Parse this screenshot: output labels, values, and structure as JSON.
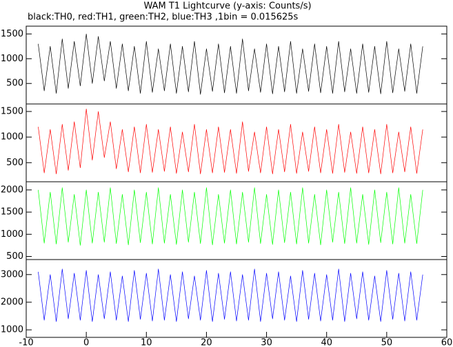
{
  "chart_data": [
    {
      "type": "line",
      "title": "WAM T1 Lightcurve (y-axis: Counts/s)",
      "subtitle": "black:TH0, red:TH1, green:TH2, blue:TH3 ,1bin = 0.015625s",
      "x": [
        -8,
        -7,
        -6,
        -5,
        -4,
        -3,
        -2,
        -1,
        0,
        1,
        2,
        3,
        4,
        5,
        6,
        7,
        8,
        9,
        10,
        11,
        12,
        13,
        14,
        15,
        16,
        17,
        18,
        19,
        20,
        21,
        22,
        23,
        24,
        25,
        26,
        27,
        28,
        29,
        30,
        31,
        32,
        33,
        34,
        35,
        36,
        37,
        38,
        39,
        40,
        41,
        42,
        43,
        44,
        45,
        46,
        47,
        48,
        49,
        50,
        51,
        52,
        53,
        54,
        55,
        56
      ],
      "series": [
        {
          "name": "TH0",
          "color": "#000000",
          "values": [
            1300,
            350,
            1250,
            300,
            1400,
            400,
            1350,
            450,
            1500,
            500,
            1450,
            550,
            1350,
            400,
            1300,
            350,
            1250,
            300,
            1350,
            320,
            1200,
            350,
            1300,
            300,
            1250,
            330,
            1350,
            280,
            1200,
            340,
            1300,
            310,
            1250,
            300,
            1400,
            350,
            1200,
            320,
            1300,
            290,
            1250,
            330,
            1350,
            300,
            1200,
            340,
            1300,
            310,
            1250,
            300,
            1350,
            330,
            1200,
            300,
            1300,
            320,
            1250,
            290,
            1350,
            310,
            1200,
            340,
            1300,
            300,
            1250
          ]
        }
      ],
      "xlim": [
        -10,
        60
      ],
      "ylim": [
        86,
        1657
      ],
      "yticks": [
        500,
        1000,
        1500
      ]
    },
    {
      "type": "line",
      "x": [
        -8,
        -7,
        -6,
        -5,
        -4,
        -3,
        -2,
        -1,
        0,
        1,
        2,
        3,
        4,
        5,
        6,
        7,
        8,
        9,
        10,
        11,
        12,
        13,
        14,
        15,
        16,
        17,
        18,
        19,
        20,
        21,
        22,
        23,
        24,
        25,
        26,
        27,
        28,
        29,
        30,
        31,
        32,
        33,
        34,
        35,
        36,
        37,
        38,
        39,
        40,
        41,
        42,
        43,
        44,
        45,
        46,
        47,
        48,
        49,
        50,
        51,
        52,
        53,
        54,
        55,
        56
      ],
      "series": [
        {
          "name": "TH1",
          "color": "#ff0000",
          "values": [
            1200,
            300,
            1150,
            280,
            1250,
            350,
            1300,
            400,
            1550,
            550,
            1500,
            600,
            1300,
            380,
            1150,
            320,
            1200,
            300,
            1250,
            310,
            1150,
            330,
            1200,
            290,
            1100,
            320,
            1250,
            280,
            1150,
            300,
            1200,
            310,
            1150,
            290,
            1300,
            330,
            1100,
            300,
            1200,
            280,
            1150,
            320,
            1250,
            290,
            1100,
            330,
            1200,
            300,
            1150,
            290,
            1250,
            310,
            1100,
            290,
            1200,
            300,
            1150,
            280,
            1250,
            300,
            1100,
            320,
            1200,
            290,
            1150
          ]
        }
      ],
      "xlim": [
        -10,
        60
      ],
      "ylim": [
        127,
        1647
      ],
      "yticks": [
        500,
        1000,
        1500
      ]
    },
    {
      "type": "line",
      "x": [
        -8,
        -7,
        -6,
        -5,
        -4,
        -3,
        -2,
        -1,
        0,
        1,
        2,
        3,
        4,
        5,
        6,
        7,
        8,
        9,
        10,
        11,
        12,
        13,
        14,
        15,
        16,
        17,
        18,
        19,
        20,
        21,
        22,
        23,
        24,
        25,
        26,
        27,
        28,
        29,
        30,
        31,
        32,
        33,
        34,
        35,
        36,
        37,
        38,
        39,
        40,
        41,
        42,
        43,
        44,
        45,
        46,
        47,
        48,
        49,
        50,
        51,
        52,
        53,
        54,
        55,
        56
      ],
      "series": [
        {
          "name": "TH2",
          "color": "#00ff00",
          "values": [
            2000,
            800,
            1950,
            780,
            2050,
            820,
            1900,
            750,
            2000,
            800,
            1950,
            820,
            2050,
            790,
            1900,
            760,
            2000,
            810,
            1950,
            780,
            2050,
            800,
            1900,
            770,
            2000,
            820,
            1950,
            790,
            2050,
            760,
            1900,
            800,
            2000,
            780,
            1950,
            820,
            2050,
            790,
            1900,
            770,
            2000,
            810,
            1950,
            780,
            2050,
            800,
            1900,
            760,
            2000,
            820,
            1950,
            790,
            2050,
            800,
            1900,
            770,
            2000,
            810,
            1950,
            780,
            2050,
            800,
            1900,
            790,
            2000
          ]
        }
      ],
      "xlim": [
        -10,
        60
      ],
      "ylim": [
        430,
        2184
      ],
      "yticks": [
        500,
        1000,
        1500,
        2000
      ]
    },
    {
      "type": "line",
      "x": [
        -8,
        -7,
        -6,
        -5,
        -4,
        -3,
        -2,
        -1,
        0,
        1,
        2,
        3,
        4,
        5,
        6,
        7,
        8,
        9,
        10,
        11,
        12,
        13,
        14,
        15,
        16,
        17,
        18,
        19,
        20,
        21,
        22,
        23,
        24,
        25,
        26,
        27,
        28,
        29,
        30,
        31,
        32,
        33,
        34,
        35,
        36,
        37,
        38,
        39,
        40,
        41,
        42,
        43,
        44,
        45,
        46,
        47,
        48,
        49,
        50,
        51,
        52,
        53,
        54,
        55,
        56
      ],
      "series": [
        {
          "name": "TH3",
          "color": "#0000ff",
          "values": [
            3100,
            1350,
            3000,
            1300,
            3200,
            1400,
            3050,
            1350,
            3150,
            1300,
            3000,
            1400,
            3100,
            1350,
            2950,
            1300,
            3150,
            1380,
            3050,
            1320,
            3200,
            1350,
            3000,
            1300,
            3100,
            1400,
            2950,
            1350,
            3150,
            1300,
            3050,
            1380,
            3100,
            1320,
            3000,
            1350,
            3200,
            1300,
            3050,
            1400,
            3100,
            1350,
            2950,
            1300,
            3150,
            1380,
            3050,
            1320,
            3000,
            1350,
            3200,
            1300,
            3050,
            1400,
            3100,
            1350,
            2950,
            1300,
            3150,
            1380,
            3050,
            1320,
            3100,
            1350,
            3000
          ]
        }
      ],
      "xlim": [
        -10,
        60
      ],
      "ylim": [
        728,
        3543
      ],
      "yticks": [
        1000,
        2000,
        3000
      ],
      "xticks": [
        -10,
        0,
        10,
        20,
        30,
        40,
        50,
        60
      ]
    }
  ]
}
